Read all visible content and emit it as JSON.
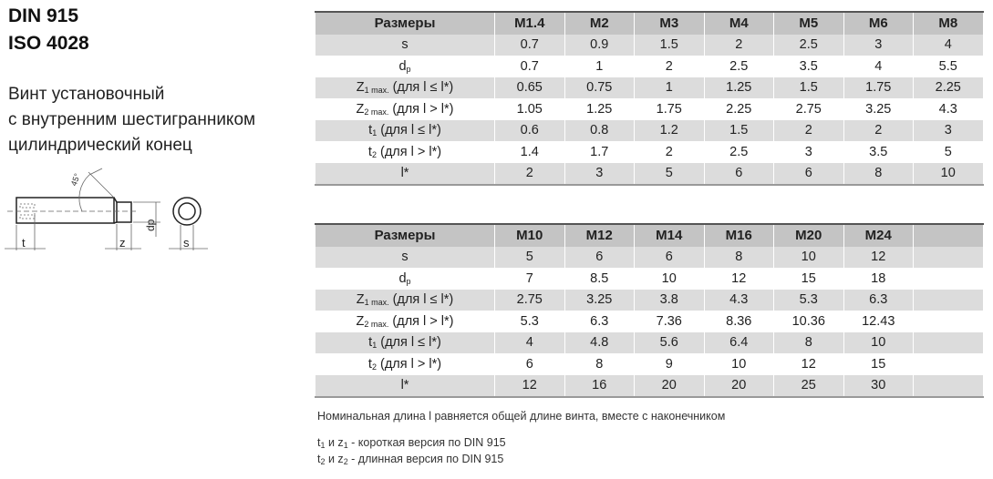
{
  "header": {
    "line1": "DIN 915",
    "line2": "ISO 4028"
  },
  "description": [
    "Винт установочный",
    "с внутренним шестигранником",
    "цилиндрический конец"
  ],
  "drawing": {
    "angle_label": "45°",
    "labels": {
      "t": "t",
      "z": "z",
      "dp": "dp",
      "s": "s"
    }
  },
  "row_labels": [
    {
      "base": "s",
      "sub": "",
      "rest": ""
    },
    {
      "base": "d",
      "sub": "p",
      "rest": ""
    },
    {
      "base": "Z",
      "sub": "1 max.",
      "rest": " (для l ≤ l*)"
    },
    {
      "base": "Z",
      "sub": "2 max.",
      "rest": " (для l > l*)"
    },
    {
      "base": "t",
      "sub": "1",
      "rest": " (для l ≤ l*)"
    },
    {
      "base": "t",
      "sub": "2",
      "rest": " (для l > l*)"
    },
    {
      "base": "l*",
      "sub": "",
      "rest": ""
    }
  ],
  "tables": [
    {
      "header_label": "Размеры",
      "sizes": [
        "M1.4",
        "M2",
        "M3",
        "M4",
        "M5",
        "M6",
        "M8"
      ],
      "rows": [
        [
          "0.7",
          "0.9",
          "1.5",
          "2",
          "2.5",
          "3",
          "4"
        ],
        [
          "0.7",
          "1",
          "2",
          "2.5",
          "3.5",
          "4",
          "5.5"
        ],
        [
          "0.65",
          "0.75",
          "1",
          "1.25",
          "1.5",
          "1.75",
          "2.25"
        ],
        [
          "1.05",
          "1.25",
          "1.75",
          "2.25",
          "2.75",
          "3.25",
          "4.3"
        ],
        [
          "0.6",
          "0.8",
          "1.2",
          "1.5",
          "2",
          "2",
          "3"
        ],
        [
          "1.4",
          "1.7",
          "2",
          "2.5",
          "3",
          "3.5",
          "5"
        ],
        [
          "2",
          "3",
          "5",
          "6",
          "6",
          "8",
          "10"
        ]
      ]
    },
    {
      "header_label": "Размеры",
      "sizes": [
        "M10",
        "M12",
        "M14",
        "M16",
        "M20",
        "M24",
        ""
      ],
      "rows": [
        [
          "5",
          "6",
          "6",
          "8",
          "10",
          "12",
          ""
        ],
        [
          "7",
          "8.5",
          "10",
          "12",
          "15",
          "18",
          ""
        ],
        [
          "2.75",
          "3.25",
          "3.8",
          "4.3",
          "5.3",
          "6.3",
          ""
        ],
        [
          "5.3",
          "6.3",
          "7.36",
          "8.36",
          "10.36",
          "12.43",
          ""
        ],
        [
          "4",
          "4.8",
          "5.6",
          "6.4",
          "8",
          "10",
          ""
        ],
        [
          "6",
          "8",
          "9",
          "10",
          "12",
          "15",
          ""
        ],
        [
          "12",
          "16",
          "20",
          "20",
          "25",
          "30",
          ""
        ]
      ]
    }
  ],
  "notes": {
    "nominal": "Номинальная длина l равняется общей длине винта, вместе с наконечником",
    "short": {
      "a": "t",
      "a_sub": "1",
      "mid": " и z",
      "b_sub": "1",
      "text": " - короткая  версия по  DIN 915"
    },
    "long": {
      "a": "t",
      "a_sub": "2",
      "mid": " и z",
      "b_sub": "2",
      "text": " - длинная версия по DIN 915"
    }
  }
}
